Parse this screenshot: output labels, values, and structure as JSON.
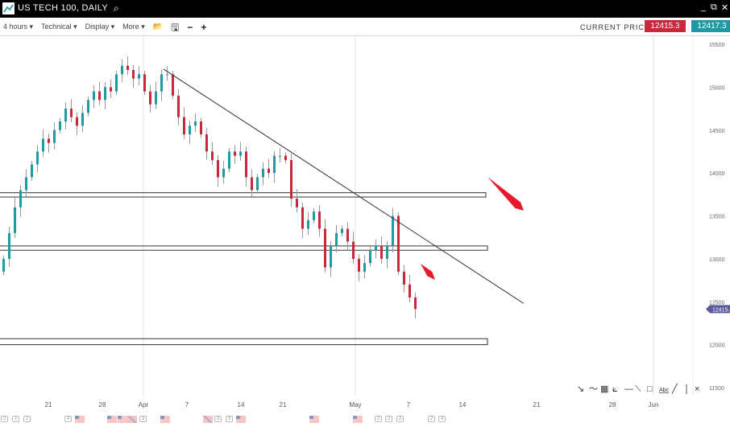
{
  "window": {
    "title": "US TECH 100, DAILY",
    "icons": [
      "chart-logo-icon",
      "search-icon",
      "minimize-icon",
      "popout-icon",
      "close-icon"
    ]
  },
  "toolbar": {
    "menus": [
      "4 hours",
      "Technical",
      "Display",
      "More"
    ],
    "icons": [
      "open-folder-icon",
      "save-icon",
      "zoom-out-icon",
      "zoom-in-icon"
    ],
    "current_price_label": "CURRENT PRICE:",
    "bid": "12415.3",
    "ask": "12417.3"
  },
  "colors": {
    "up": "#1e9aa5",
    "down": "#c9283a",
    "bid": "#c9283a",
    "ask": "#1e9aa5",
    "price_tag": "#5b5b9e",
    "arrow": "#e8192c"
  },
  "chart_data": {
    "type": "candlestick",
    "y_ticks": [
      "15500",
      "15000",
      "14500",
      "14000",
      "13500",
      "13000",
      "12500",
      "12000",
      "11500"
    ],
    "ylim": [
      11500,
      15500
    ],
    "x_ticks": [
      "21",
      "28",
      "Apr",
      "7",
      "14",
      "21",
      "May",
      "7",
      "14",
      "21",
      "28",
      "Jun"
    ],
    "closes": [
      13000,
      13300,
      13600,
      13800,
      13950,
      14100,
      14250,
      14400,
      14350,
      14500,
      14600,
      14750,
      14650,
      14550,
      14700,
      14850,
      14950,
      14850,
      15000,
      14950,
      15150,
      15250,
      15200,
      15100,
      15150,
      14950,
      14800,
      14950,
      15150,
      15150,
      14900,
      14650,
      14450,
      14550,
      14600,
      14450,
      14250,
      14150,
      13950,
      14050,
      14250,
      14200,
      14250,
      13950,
      13800,
      13950,
      14050,
      14000,
      14200,
      14200,
      14150,
      13700,
      13600,
      13350,
      13450,
      13550,
      13350,
      12900,
      13150,
      13300,
      13350,
      13200,
      13000,
      12850,
      12950,
      13100,
      13150,
      13000,
      13150,
      13500,
      12850,
      12700,
      12550,
      12415
    ],
    "last_price_tag": "12415.3",
    "horizontal_zones": [
      [
        13720,
        13770
      ],
      [
        13100,
        13150
      ],
      [
        12000,
        12070
      ]
    ],
    "trendline": {
      "from": 15210,
      "to": 12480
    }
  },
  "drawing_tools": [
    "cursor-arrow-icon",
    "curve-icon",
    "grid-icon",
    "fan-icon",
    "horizontal-line-icon",
    "segment-icon",
    "rectangle-icon",
    "text-icon",
    "line-icon",
    "delete-icon"
  ],
  "drawing_text_tool": "Abc",
  "events": [
    "2",
    "2",
    "2",
    "4",
    "3",
    "3",
    "3",
    "2",
    "2",
    "2",
    "2",
    "4"
  ]
}
